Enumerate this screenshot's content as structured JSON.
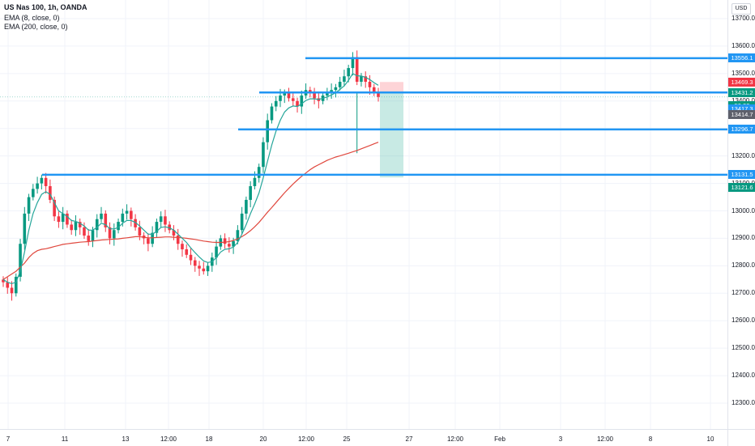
{
  "legend": {
    "symbol": "US Nas 100, 1h, OANDA",
    "ema_fast": "EMA (8, close, 0)",
    "ema_slow": "EMA (200, close, 0)"
  },
  "currency_button": "USD",
  "price_scale": {
    "ticks": [
      {
        "value": 13700,
        "label": "13700.0"
      },
      {
        "value": 13600,
        "label": "13600.0"
      },
      {
        "value": 13500,
        "label": "13500.0"
      },
      {
        "value": 13400,
        "label": "13400.0"
      },
      {
        "value": 13300,
        "label": "13300.0"
      },
      {
        "value": 13200,
        "label": "13200.0"
      },
      {
        "value": 13100,
        "label": "13100.0"
      },
      {
        "value": 13000,
        "label": "13000.0"
      },
      {
        "value": 12900,
        "label": "12900.0"
      },
      {
        "value": 12800,
        "label": "12800.0"
      },
      {
        "value": 12700,
        "label": "12700.0"
      },
      {
        "value": 12600,
        "label": "12600.0"
      },
      {
        "value": 12500,
        "label": "12500.0"
      },
      {
        "value": 12400,
        "label": "12400.0"
      },
      {
        "value": 12300,
        "label": "12300.0"
      }
    ],
    "tags": [
      {
        "label": "13556.1",
        "value": 13556.1,
        "color": "#2196f3"
      },
      {
        "label": "13469.3",
        "value": 13469.3,
        "color": "#f23645"
      },
      {
        "label": "13431.2",
        "value": 13431.2,
        "color": "#089981"
      },
      {
        "label": "50:23",
        "value": 13414.5,
        "color": "#089981",
        "offset": 11
      },
      {
        "label": "13417.3",
        "value": 13417.3,
        "color": "#2196f3",
        "offset": 16
      },
      {
        "label": "13414.7",
        "value": 13414.7,
        "color": "#5d606b",
        "offset": 22
      },
      {
        "label": "13296.7",
        "value": 13296.7,
        "color": "#2196f3"
      },
      {
        "label": "13131.5",
        "value": 13131.5,
        "color": "#2196f3"
      },
      {
        "label": "13121.6",
        "value": 13121.6,
        "color": "#089981",
        "offset": 12
      }
    ]
  },
  "time_scale": [
    "7",
    "11",
    "13",
    "12:00",
    "18",
    "20",
    "12:00",
    "25",
    "27",
    "12:00",
    "Feb",
    "3",
    "12:00",
    "8",
    "10"
  ],
  "chart_data": {
    "type": "candlestick",
    "symbol": "US Nas 100",
    "interval": "1h",
    "source": "OANDA",
    "currency": "USD",
    "y_range": [
      12200,
      13760
    ],
    "horizontal_levels": [
      13556.1,
      13431.2,
      13296.7,
      13131.5
    ],
    "position_tool": {
      "entry": 13431.2,
      "stop": 13469.3,
      "target": 13121.6
    },
    "last_price": 13414.7,
    "closes": [
      12740,
      12720,
      12700,
      12760,
      12880,
      12990,
      13050,
      13080,
      13100,
      13120,
      13090,
      13040,
      12980,
      12960,
      12990,
      12950,
      12930,
      12960,
      12940,
      12910,
      12890,
      12930,
      12970,
      12990,
      12940,
      12900,
      12930,
      12960,
      12990,
      13000,
      12970,
      12940,
      12910,
      12900,
      12880,
      12920,
      12960,
      12980,
      12950,
      12930,
      12910,
      12880,
      12860,
      12840,
      12820,
      12800,
      12790,
      12780,
      12800,
      12830,
      12870,
      12900,
      12880,
      12870,
      12890,
      12930,
      12990,
      13040,
      13090,
      13120,
      13160,
      13250,
      13330,
      13380,
      13400,
      13420,
      13430,
      13410,
      13400,
      13380,
      13420,
      13440,
      13430,
      13410,
      13400,
      13420,
      13430,
      13440,
      13450,
      13470,
      13490,
      13520,
      13560,
      13470,
      13490,
      13470,
      13450,
      13430,
      13415
    ],
    "ema_8": [
      12750,
      12740,
      12735,
      12740,
      12780,
      12850,
      12930,
      12990,
      13030,
      13060,
      13070,
      13060,
      13030,
      13000,
      12990,
      12980,
      12965,
      12962,
      12955,
      12945,
      12930,
      12930,
      12940,
      12955,
      12950,
      12935,
      12934,
      12940,
      12955,
      12965,
      12965,
      12958,
      12945,
      12930,
      12915,
      12915,
      12925,
      12940,
      12942,
      12938,
      12930,
      12915,
      12900,
      12885,
      12865,
      12848,
      12832,
      12818,
      12812,
      12815,
      12830,
      12850,
      12860,
      12862,
      12868,
      12885,
      12915,
      12950,
      12990,
      13025,
      13065,
      13120,
      13180,
      13240,
      13290,
      13330,
      13360,
      13375,
      13382,
      13380,
      13390,
      13402,
      13408,
      13408,
      13406,
      13410,
      13415,
      13422,
      13430,
      13442,
      13455,
      13475,
      13500,
      13492,
      13491,
      13486,
      13478,
      13467,
      13457
    ],
    "ema_200": [
      12750,
      12760,
      12770,
      12780,
      12795,
      12810,
      12830,
      12845,
      12855,
      12860,
      12862,
      12866,
      12870,
      12874,
      12878,
      12880,
      12882,
      12884,
      12886,
      12887,
      12888,
      12890,
      12892,
      12894,
      12895,
      12896,
      12897,
      12898,
      12900,
      12902,
      12904,
      12906,
      12906,
      12904,
      12902,
      12902,
      12903,
      12904,
      12905,
      12905,
      12904,
      12903,
      12902,
      12900,
      12898,
      12896,
      12893,
      12890,
      12888,
      12886,
      12885,
      12885,
      12886,
      12888,
      12892,
      12898,
      12906,
      12916,
      12928,
      12942,
      12958,
      12976,
      12995,
      13012,
      13030,
      13048,
      13066,
      13082,
      13098,
      13112,
      13126,
      13138,
      13150,
      13160,
      13168,
      13176,
      13184,
      13190,
      13196,
      13200,
      13205,
      13210,
      13215,
      13220,
      13226,
      13232,
      13238,
      13244,
      13250
    ]
  }
}
